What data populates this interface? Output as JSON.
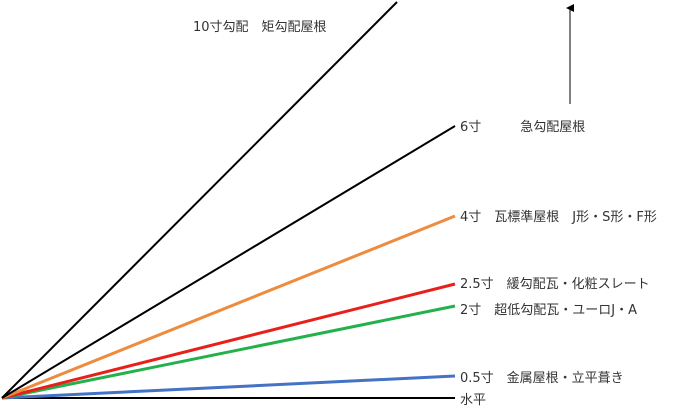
{
  "lines": [
    {
      "id": "horizontal",
      "label": "水平",
      "color": "#000000"
    },
    {
      "id": "pitch-0-5",
      "label": "0.5寸　金属屋根・立平葺き",
      "color": "#4472c4"
    },
    {
      "id": "pitch-2",
      "label": "2寸　超低勾配瓦・ユーロJ・A",
      "color": "#22b14c"
    },
    {
      "id": "pitch-2-5",
      "label": "2.5寸　緩勾配瓦・化粧スレート",
      "color": "#e8201a"
    },
    {
      "id": "pitch-4",
      "label": "4寸　瓦標準屋根　J形・S形・F形",
      "color": "#ed8b3e"
    },
    {
      "id": "pitch-6",
      "label": "6寸　　　急勾配屋根",
      "color": "#000000"
    },
    {
      "id": "pitch-10",
      "label": "10寸勾配　矩勾配屋根",
      "color": "#000000"
    }
  ],
  "steepness_arrow": {
    "color": "#000000"
  }
}
